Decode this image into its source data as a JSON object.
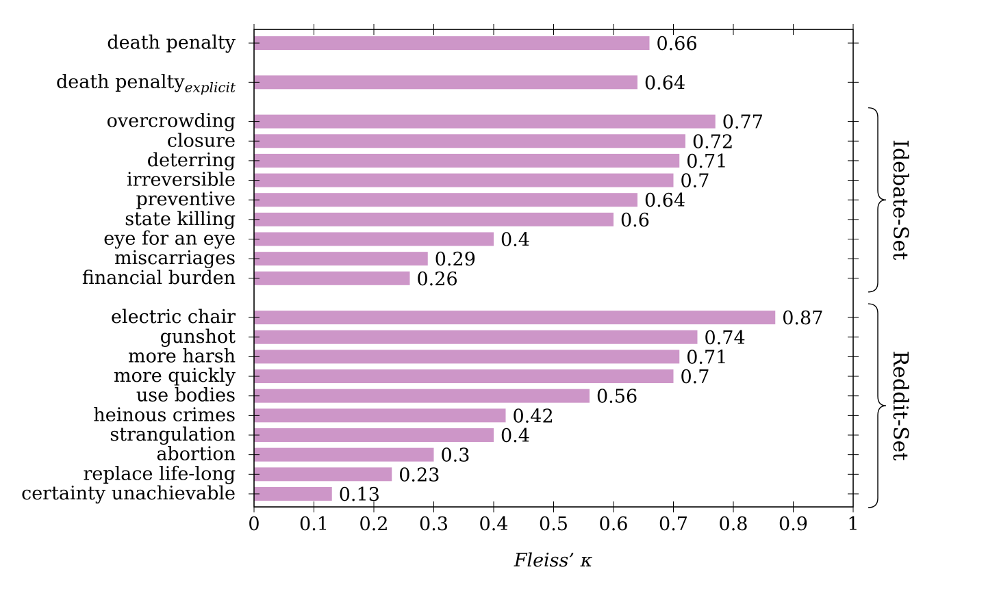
{
  "chart_data": {
    "type": "bar",
    "orientation": "horizontal",
    "xlabel": "Fleiss’ κ",
    "xlim": [
      0,
      1
    ],
    "xticks": [
      "0",
      "0.1",
      "0.2",
      "0.3",
      "0.4",
      "0.5",
      "0.6",
      "0.7",
      "0.8",
      "0.9",
      "1"
    ],
    "bar_color": "#cd96c8",
    "grid": false,
    "categories": [
      {
        "label": "death penalty",
        "subscript": "",
        "value": 0.66,
        "value_label": "0.66"
      },
      {
        "label": "death penalty",
        "subscript": "explicit",
        "value": 0.64,
        "value_label": "0.64"
      },
      {
        "label": "overcrowding",
        "subscript": "",
        "value": 0.77,
        "value_label": "0.77"
      },
      {
        "label": "closure",
        "subscript": "",
        "value": 0.72,
        "value_label": "0.72"
      },
      {
        "label": "deterring",
        "subscript": "",
        "value": 0.71,
        "value_label": "0.71"
      },
      {
        "label": "irreversible",
        "subscript": "",
        "value": 0.7,
        "value_label": "0.7"
      },
      {
        "label": "preventive",
        "subscript": "",
        "value": 0.64,
        "value_label": "0.64"
      },
      {
        "label": "state killing",
        "subscript": "",
        "value": 0.6,
        "value_label": "0.6"
      },
      {
        "label": "eye for an eye",
        "subscript": "",
        "value": 0.4,
        "value_label": "0.4"
      },
      {
        "label": "miscarriages",
        "subscript": "",
        "value": 0.29,
        "value_label": "0.29"
      },
      {
        "label": "financial burden",
        "subscript": "",
        "value": 0.26,
        "value_label": "0.26"
      },
      {
        "label": "electric chair",
        "subscript": "",
        "value": 0.87,
        "value_label": "0.87"
      },
      {
        "label": "gunshot",
        "subscript": "",
        "value": 0.74,
        "value_label": "0.74"
      },
      {
        "label": "more harsh",
        "subscript": "",
        "value": 0.71,
        "value_label": "0.71"
      },
      {
        "label": "more quickly",
        "subscript": "",
        "value": 0.7,
        "value_label": "0.7"
      },
      {
        "label": "use bodies",
        "subscript": "",
        "value": 0.56,
        "value_label": "0.56"
      },
      {
        "label": "heinous crimes",
        "subscript": "",
        "value": 0.42,
        "value_label": "0.42"
      },
      {
        "label": "strangulation",
        "subscript": "",
        "value": 0.4,
        "value_label": "0.4"
      },
      {
        "label": "abortion",
        "subscript": "",
        "value": 0.3,
        "value_label": "0.3"
      },
      {
        "label": "replace life-long",
        "subscript": "",
        "value": 0.23,
        "value_label": "0.23"
      },
      {
        "label": "certainty unachievable",
        "subscript": "",
        "value": 0.13,
        "value_label": "0.13"
      }
    ],
    "groups": [
      {
        "label": "Idebate-Set",
        "first": 2,
        "last": 10
      },
      {
        "label": "Reddit-Set",
        "first": 11,
        "last": 20
      }
    ]
  }
}
